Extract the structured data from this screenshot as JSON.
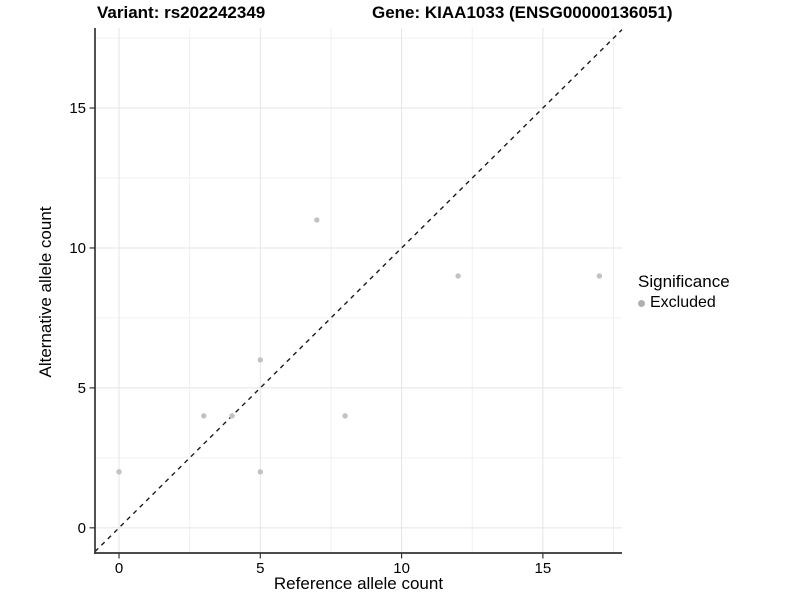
{
  "titles": {
    "left": "Variant: rs202242349",
    "right": "Gene: KIAA1033 (ENSG00000136051)"
  },
  "chart_data": {
    "type": "scatter",
    "title_left": "Variant: rs202242349",
    "title_right": "Gene: KIAA1033 (ENSG00000136051)",
    "xlabel": "Reference allele count",
    "ylabel": "Alternative allele count",
    "xlim": [
      -0.85,
      17.8
    ],
    "ylim": [
      -0.9,
      17.86
    ],
    "x_ticks": [
      0,
      5,
      10,
      15
    ],
    "y_ticks": [
      0,
      5,
      10,
      15
    ],
    "x_minor_gridlines": [
      2.5,
      7.5,
      12.5,
      17.5
    ],
    "y_minor_gridlines": [
      2.5,
      7.5,
      12.5,
      17.5
    ],
    "grid": true,
    "legend_position": "right",
    "identity_line": {
      "slope": 1,
      "intercept": 0,
      "style": "dashed",
      "color": "#1a1a1a"
    },
    "series": [
      {
        "name": "Excluded",
        "color": "#c2c2c2",
        "points": [
          [
            0,
            2
          ],
          [
            3,
            4
          ],
          [
            4,
            4
          ],
          [
            5,
            2
          ],
          [
            5,
            6
          ],
          [
            7,
            11
          ],
          [
            8,
            4
          ],
          [
            12,
            9
          ],
          [
            17,
            9
          ]
        ]
      }
    ],
    "legend": {
      "title": "Significance",
      "items": [
        {
          "label": "Excluded",
          "color": "#b0b0b0"
        }
      ]
    },
    "colors": {
      "axis_line": "#333333",
      "tick_mark": "#333333",
      "tick_text": "#000000",
      "major_grid": "#e5e5e5",
      "minor_grid": "#f0f0f0",
      "panel_background": "#ffffff"
    }
  }
}
